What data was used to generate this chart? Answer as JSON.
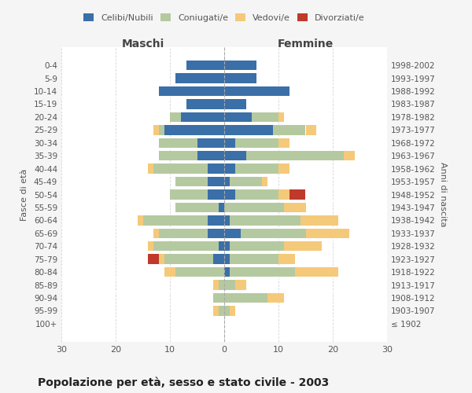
{
  "age_groups": [
    "100+",
    "95-99",
    "90-94",
    "85-89",
    "80-84",
    "75-79",
    "70-74",
    "65-69",
    "60-64",
    "55-59",
    "50-54",
    "45-49",
    "40-44",
    "35-39",
    "30-34",
    "25-29",
    "20-24",
    "15-19",
    "10-14",
    "5-9",
    "0-4"
  ],
  "birth_years": [
    "≤ 1902",
    "1903-1907",
    "1908-1912",
    "1913-1917",
    "1918-1922",
    "1923-1927",
    "1928-1932",
    "1933-1937",
    "1938-1942",
    "1943-1947",
    "1948-1952",
    "1953-1957",
    "1958-1962",
    "1963-1967",
    "1968-1972",
    "1973-1977",
    "1978-1982",
    "1983-1987",
    "1988-1992",
    "1993-1997",
    "1998-2002"
  ],
  "maschi": {
    "celibe": [
      0,
      0,
      0,
      0,
      0,
      2,
      1,
      3,
      3,
      1,
      3,
      3,
      3,
      5,
      5,
      11,
      8,
      7,
      12,
      9,
      7
    ],
    "coniugato": [
      0,
      1,
      2,
      1,
      9,
      9,
      12,
      9,
      12,
      8,
      7,
      6,
      10,
      7,
      7,
      1,
      2,
      0,
      0,
      0,
      0
    ],
    "vedovo": [
      0,
      1,
      0,
      1,
      2,
      1,
      1,
      1,
      1,
      0,
      0,
      0,
      1,
      0,
      0,
      1,
      0,
      0,
      0,
      0,
      0
    ],
    "divorziato": [
      0,
      0,
      0,
      0,
      0,
      2,
      0,
      0,
      0,
      0,
      0,
      0,
      0,
      0,
      0,
      0,
      0,
      0,
      0,
      0,
      0
    ]
  },
  "femmine": {
    "nubile": [
      0,
      0,
      0,
      0,
      1,
      1,
      1,
      3,
      1,
      0,
      2,
      1,
      2,
      4,
      2,
      9,
      5,
      4,
      12,
      6,
      6
    ],
    "coniugata": [
      0,
      1,
      8,
      2,
      12,
      9,
      10,
      12,
      13,
      11,
      8,
      6,
      8,
      18,
      8,
      6,
      5,
      0,
      0,
      0,
      0
    ],
    "vedova": [
      0,
      1,
      3,
      2,
      8,
      3,
      7,
      8,
      7,
      4,
      2,
      1,
      2,
      2,
      2,
      2,
      1,
      0,
      0,
      0,
      0
    ],
    "divorziata": [
      0,
      0,
      0,
      0,
      0,
      0,
      0,
      0,
      0,
      0,
      3,
      0,
      0,
      0,
      0,
      0,
      0,
      0,
      0,
      0,
      0
    ]
  },
  "colors": {
    "celibe": "#3a6fa8",
    "coniugato": "#b5c9a0",
    "vedovo": "#f5c97a",
    "divorziato": "#c0392b"
  },
  "xlim": 30,
  "title": "Popolazione per età, sesso e stato civile - 2003",
  "ylabel_left": "Fasce di età",
  "ylabel_right": "Anni di nascita",
  "xlabel_left": "Maschi",
  "xlabel_right": "Femmine",
  "background_color": "#f5f5f5",
  "plot_bg_color": "#ffffff",
  "grid_color": "#cccccc"
}
